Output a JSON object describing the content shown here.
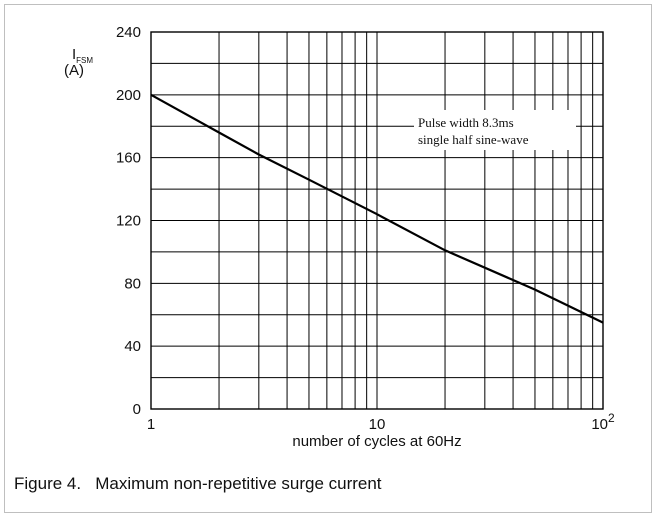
{
  "caption": "Figure 4.   Maximum non-repetitive surge current",
  "chart_data": {
    "type": "line",
    "xscale": "log",
    "xlim": [
      1,
      100
    ],
    "ylim": [
      0,
      240
    ],
    "grid": true,
    "xlabel": "number of cycles at 60Hz",
    "ylabel": "I",
    "ylabel_sub": "FSM",
    "ylabel_unit": "(A)",
    "yticks": [
      0,
      40,
      80,
      120,
      160,
      200,
      240
    ],
    "xticks": [
      {
        "value": 1,
        "label": "1"
      },
      {
        "value": 10,
        "label": "10"
      },
      {
        "value": 100,
        "label": "10",
        "sup": "2"
      }
    ],
    "annotation": [
      "Pulse width 8.3ms",
      "single half sine-wave"
    ],
    "series": [
      {
        "x": [
          1,
          2,
          3,
          5,
          10,
          20,
          50,
          100
        ],
        "y": [
          200,
          176,
          162,
          146,
          124,
          101,
          76,
          55
        ]
      }
    ]
  }
}
